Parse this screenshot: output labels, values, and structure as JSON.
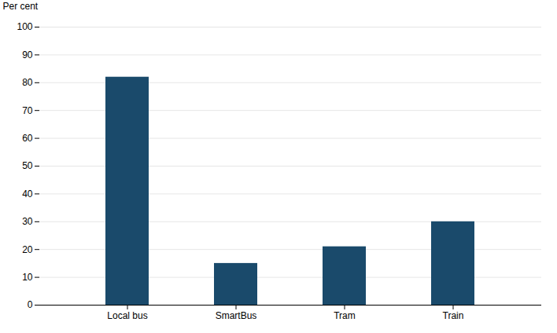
{
  "chart_data": {
    "type": "bar",
    "categories": [
      "Local bus",
      "SmartBus",
      "Tram",
      "Train"
    ],
    "values": [
      82,
      15,
      21,
      30
    ],
    "color": "#1a4a6b",
    "ylabel": "Per cent",
    "ylim": [
      0,
      100
    ],
    "yticks": [
      0,
      10,
      20,
      30,
      40,
      50,
      60,
      70,
      80,
      90,
      100
    ],
    "grid": true
  }
}
